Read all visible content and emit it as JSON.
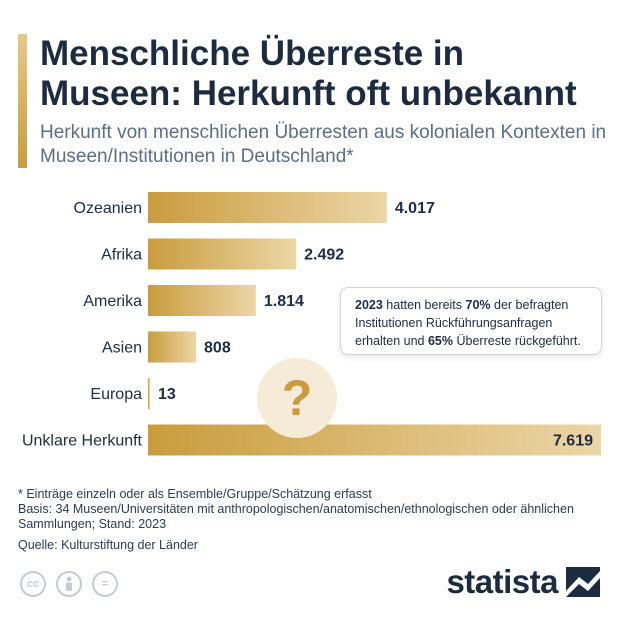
{
  "header": {
    "title": "Menschliche Überreste in Museen: Herkunft oft unbekannt",
    "subtitle": "Herkunft von menschlichen Überresten aus kolonialen Kontexten in Museen/Institutionen in Deutschland*"
  },
  "chart_data": {
    "type": "bar",
    "orientation": "horizontal",
    "categories": [
      "Ozeanien",
      "Afrika",
      "Amerika",
      "Asien",
      "Europa",
      "Unklare Herkunft"
    ],
    "values": [
      4017,
      2492,
      1814,
      808,
      13,
      7619
    ],
    "value_labels": [
      "4.017",
      "2.492",
      "1.814",
      "808",
      "13",
      "7.619"
    ],
    "xlim": [
      0,
      7619
    ],
    "grid": false,
    "bar_color_start": "#c99c3d",
    "bar_color_end": "#ecd6a6"
  },
  "callout": {
    "year": "2023",
    "text1": " hatten bereits ",
    "pct1": "70%",
    "text2": " der befragten Institutionen Rückführungsanfragen erhalten und ",
    "pct2": "65%",
    "text3": " Überreste rückgeführt."
  },
  "question_mark": "?",
  "notes": {
    "footnote": "* Einträge einzeln oder als Ensemble/Gruppe/Schätzung erfasst",
    "basis": "Basis: 34 Museen/Universitäten mit anthropologischen/anatomischen/ethnologischen oder ähnlichen Sammlungen; Stand: 2023",
    "source": "Quelle: Kulturstiftung der Länder"
  },
  "license_icons": {
    "cc": "cc",
    "eq": "="
  },
  "brand": {
    "name": "statista"
  }
}
